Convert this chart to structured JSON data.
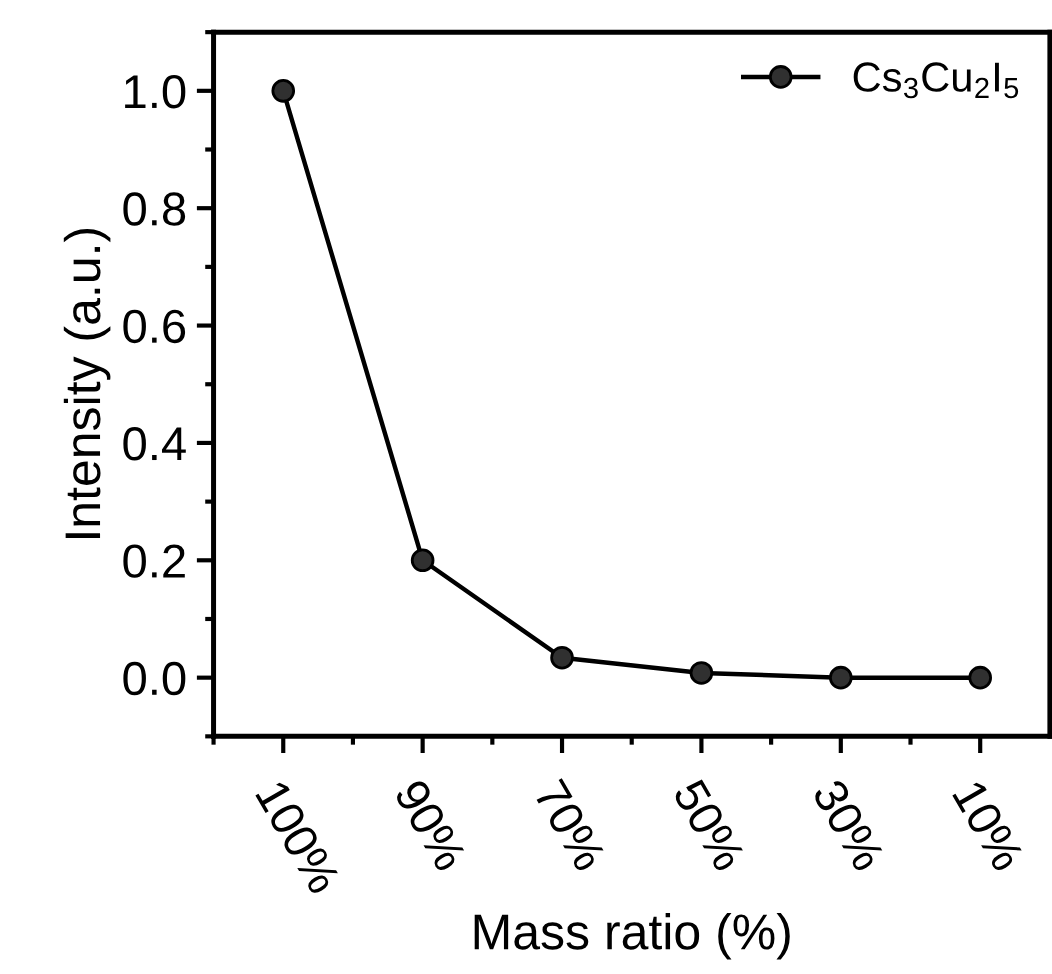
{
  "chart_data": {
    "type": "line",
    "xlabel": "Mass ratio (%)",
    "ylabel": "Intensity (a.u.)",
    "categories": [
      "100%",
      "90%",
      "70%",
      "50%",
      "30%",
      "10%"
    ],
    "series": [
      {
        "name": "Cs$_{3}$Cu$_{2}$I$_{5}$",
        "color": "#000000",
        "values": [
          1.0,
          0.2,
          0.034,
          0.008,
          0.0,
          0.0
        ]
      }
    ],
    "ylim": [
      -0.1,
      1.1
    ],
    "yticks": [
      {
        "value": 0,
        "label": "0.0"
      },
      {
        "value": 0.2,
        "label": "0.2"
      },
      {
        "value": 0.4,
        "label": "0.4"
      },
      {
        "value": 0.6,
        "label": "0.6"
      },
      {
        "value": 0.8,
        "label": "0.8"
      },
      {
        "value": 1,
        "label": "1.0"
      }
    ],
    "marker": "circle",
    "line_style": "solid",
    "legend": "top right",
    "grid": false
  }
}
